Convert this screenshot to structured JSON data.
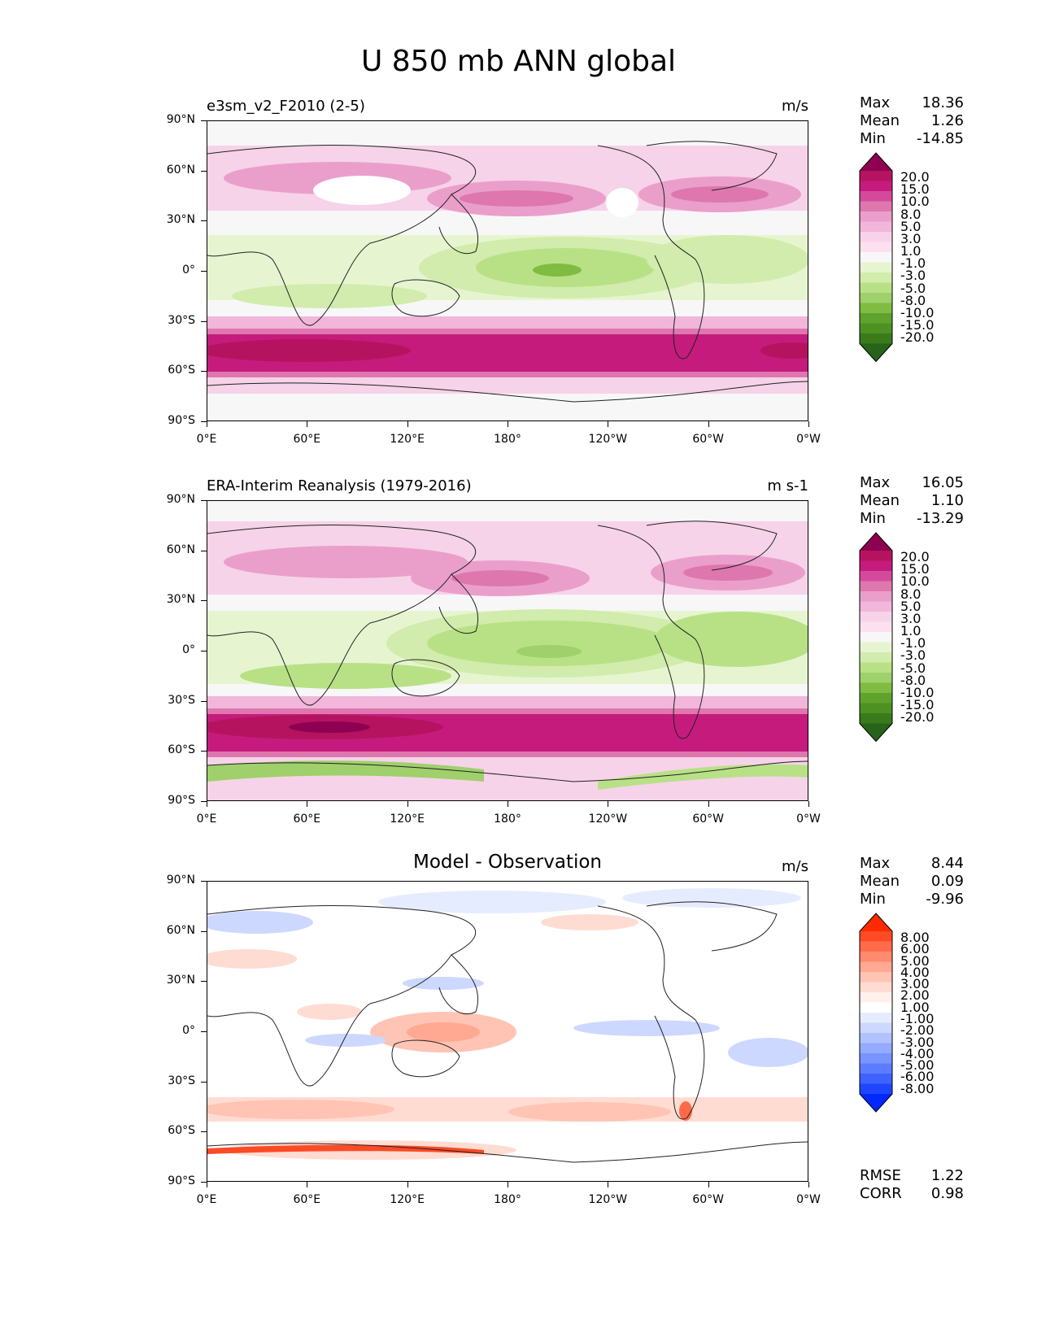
{
  "figure": {
    "title": "U 850 mb ANN global"
  },
  "axes": {
    "lat_labels": [
      "90°N",
      "60°N",
      "30°N",
      "0°",
      "30°S",
      "60°S",
      "90°S"
    ],
    "lon_labels": [
      "0°E",
      "60°E",
      "120°E",
      "180°",
      "120°W",
      "60°W",
      "0°W"
    ]
  },
  "panels": [
    {
      "name": "test",
      "title": "e3sm_v2_F2010 (2-5)",
      "units": "m/s",
      "stats": {
        "max_label": "Max",
        "max": "18.36",
        "mean_label": "Mean",
        "mean": "1.26",
        "min_label": "Min",
        "min": "-14.85"
      },
      "colorbar": {
        "labels": [
          "20.0",
          "15.0",
          "10.0",
          "8.0",
          "5.0",
          "3.0",
          "1.0",
          "-1.0",
          "-3.0",
          "-5.0",
          "-8.0",
          "-10.0",
          "-15.0",
          "-20.0"
        ],
        "colors": [
          "#8e0152",
          "#b5135f",
          "#c51b7d",
          "#d5499b",
          "#de77ae",
          "#ea9fcb",
          "#f1b6da",
          "#f6d3e8",
          "#fde0ef",
          "#f7f7f7",
          "#e6f5d0",
          "#d1ecac",
          "#b8e186",
          "#9fd06b",
          "#7fbc41",
          "#5fa22e",
          "#4d9221",
          "#3a7a1a",
          "#276419"
        ]
      }
    },
    {
      "name": "reference",
      "title": "ERA-Interim Reanalysis (1979-2016)",
      "units": "m s-1",
      "stats": {
        "max_label": "Max",
        "max": "16.05",
        "mean_label": "Mean",
        "mean": "1.10",
        "min_label": "Min",
        "min": "-13.29"
      },
      "colorbar": {
        "labels": [
          "20.0",
          "15.0",
          "10.0",
          "8.0",
          "5.0",
          "3.0",
          "1.0",
          "-1.0",
          "-3.0",
          "-5.0",
          "-8.0",
          "-10.0",
          "-15.0",
          "-20.0"
        ],
        "colors": [
          "#8e0152",
          "#b5135f",
          "#c51b7d",
          "#d5499b",
          "#de77ae",
          "#ea9fcb",
          "#f1b6da",
          "#f6d3e8",
          "#fde0ef",
          "#f7f7f7",
          "#e6f5d0",
          "#d1ecac",
          "#b8e186",
          "#9fd06b",
          "#7fbc41",
          "#5fa22e",
          "#4d9221",
          "#3a7a1a",
          "#276419"
        ]
      }
    },
    {
      "name": "difference",
      "title": "Model - Observation",
      "units": "m/s",
      "stats": {
        "max_label": "Max",
        "max": "8.44",
        "mean_label": "Mean",
        "mean": "0.09",
        "min_label": "Min",
        "min": "-9.96"
      },
      "colorbar": {
        "labels": [
          "8.00",
          "6.00",
          "5.00",
          "4.00",
          "3.00",
          "2.00",
          "1.00",
          "-1.00",
          "-2.00",
          "-3.00",
          "-4.00",
          "-5.00",
          "-6.00",
          "-8.00"
        ],
        "colors": [
          "#ff2a00",
          "#ff4a26",
          "#ff6a4a",
          "#ff8a6e",
          "#ffa892",
          "#ffc4b4",
          "#ffdcd2",
          "#fff0ec",
          "#ffffff",
          "#e6ecff",
          "#ccd8ff",
          "#b0c2ff",
          "#94acff",
          "#7894ff",
          "#5c7cff",
          "#3e62ff",
          "#1f46ff",
          "#0028ff"
        ]
      },
      "metrics": {
        "rmse_label": "RMSE",
        "rmse": "1.22",
        "corr_label": "CORR",
        "corr": "0.98"
      }
    }
  ]
}
